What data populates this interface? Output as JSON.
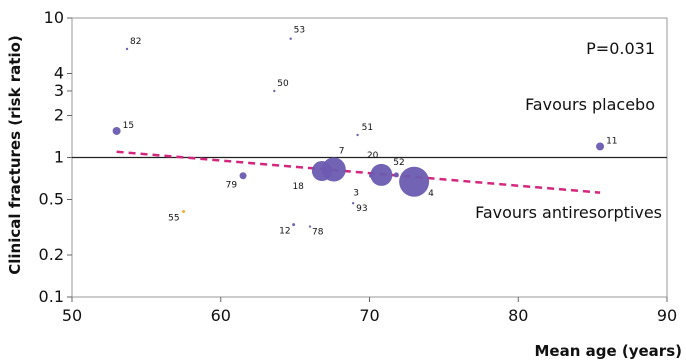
{
  "chart_data": {
    "type": "scatter",
    "xlabel": "Mean age (years)",
    "ylabel": "Clinical fractures (risk ratio)",
    "xlim": [
      50,
      90
    ],
    "ylim": [
      0.1,
      10
    ],
    "y_scale": "log",
    "x_ticks": [
      "50",
      "60",
      "70",
      "80",
      "90"
    ],
    "y_ticks": [
      {
        "value": 0.1,
        "label": "0.1"
      },
      {
        "value": 0.2,
        "label": "0.2"
      },
      {
        "value": 0.5,
        "label": "0.5"
      },
      {
        "value": 1,
        "label": "1"
      },
      {
        "value": 2,
        "label": "2"
      },
      {
        "value": 3,
        "label": "3"
      },
      {
        "value": 4,
        "label": "4"
      },
      {
        "value": 10,
        "label": "10"
      }
    ],
    "grid": false,
    "reference_line": {
      "y": 1,
      "color": "#222222"
    },
    "annotations": {
      "p_value": "P=0.031",
      "upper": "Favours placebo",
      "lower": "Favours antiresorptives"
    },
    "trend_line": {
      "x": [
        53,
        85.5
      ],
      "y": [
        1.1,
        0.56
      ],
      "color": "#d4267e",
      "style": "dashed"
    },
    "points": [
      {
        "label": "82",
        "x": 53.7,
        "y": 6.0,
        "size": 1,
        "color": "#6b5bb0"
      },
      {
        "label": "53",
        "x": 64.7,
        "y": 7.1,
        "size": 1,
        "color": "#6b5bb0"
      },
      {
        "label": "50",
        "x": 63.6,
        "y": 3.0,
        "size": 1,
        "color": "#6b5bb0"
      },
      {
        "label": "15",
        "x": 53.0,
        "y": 1.55,
        "size": 4,
        "color": "#6b5bb0"
      },
      {
        "label": "51",
        "x": 69.2,
        "y": 1.45,
        "size": 1,
        "color": "#6b5bb0"
      },
      {
        "label": "11",
        "x": 85.5,
        "y": 1.2,
        "size": 4,
        "color": "#6b5bb0"
      },
      {
        "label": "7",
        "x": 67.6,
        "y": 0.82,
        "size": 12,
        "color": "#6b5bb0"
      },
      {
        "label": "18",
        "x": 66.8,
        "y": 0.8,
        "size": 10,
        "color": "#6b5bb0"
      },
      {
        "label": "20",
        "x": 70.8,
        "y": 0.75,
        "size": 11,
        "color": "#6b5bb0"
      },
      {
        "label": "3",
        "x": 70.1,
        "y": 0.74,
        "size": 2,
        "color": "#6b5bb0"
      },
      {
        "label": "52",
        "x": 71.8,
        "y": 0.75,
        "size": 2.5,
        "color": "#6b5bb0"
      },
      {
        "label": "4",
        "x": 73.0,
        "y": 0.67,
        "size": 15,
        "color": "#6b5bb0"
      },
      {
        "label": "79",
        "x": 61.5,
        "y": 0.74,
        "size": 3.5,
        "color": "#6b5bb0"
      },
      {
        "label": "93",
        "x": 68.9,
        "y": 0.47,
        "size": 1,
        "color": "#6b5bb0"
      },
      {
        "label": "55",
        "x": 57.5,
        "y": 0.41,
        "size": 1.5,
        "color": "#f5a623"
      },
      {
        "label": "12",
        "x": 64.9,
        "y": 0.33,
        "size": 1.5,
        "color": "#6b5bb0"
      },
      {
        "label": "78",
        "x": 66.0,
        "y": 0.32,
        "size": 1,
        "color": "#6b5bb0"
      }
    ]
  }
}
